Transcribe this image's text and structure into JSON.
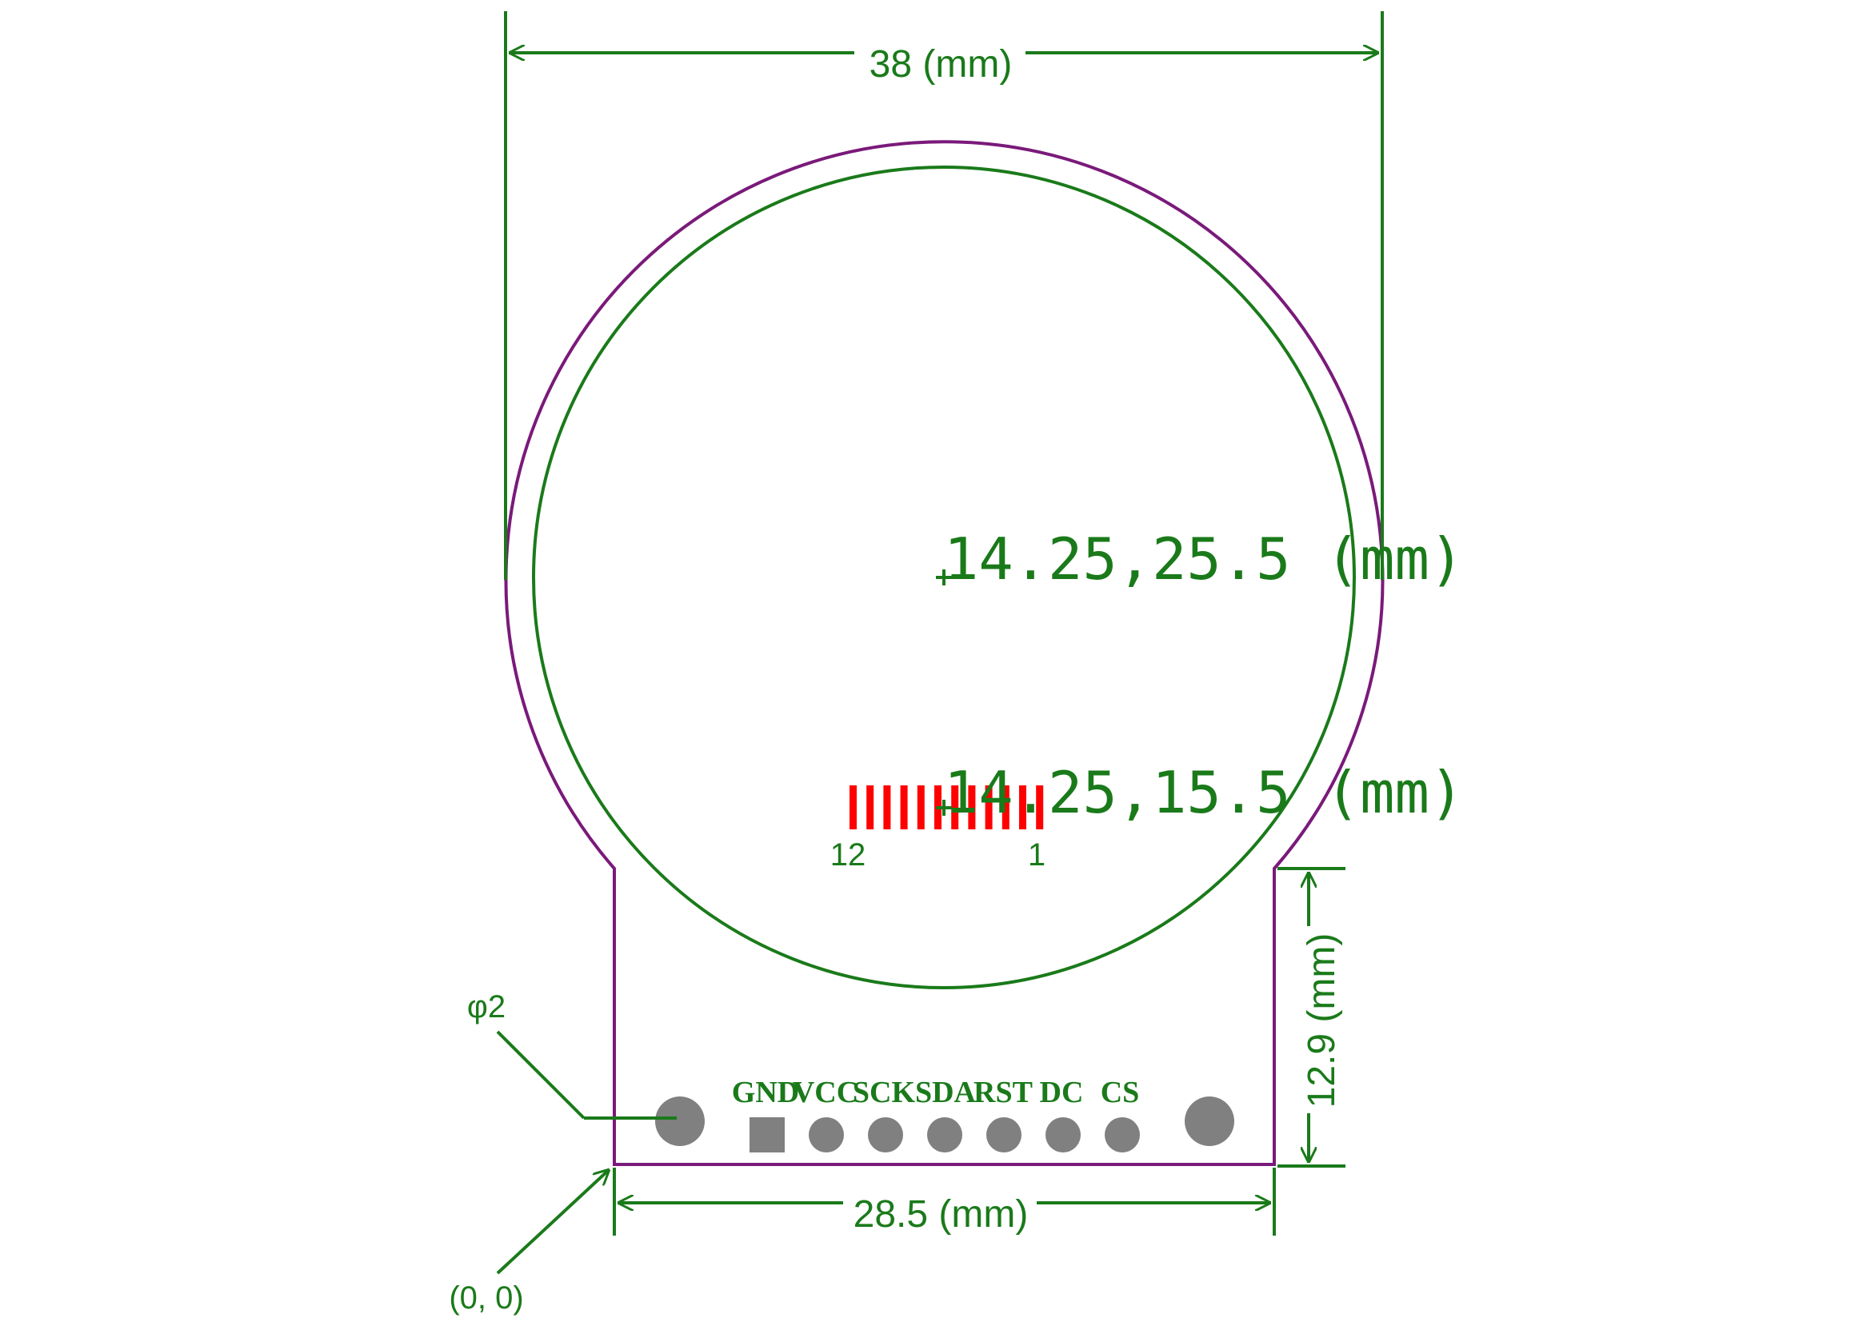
{
  "colors": {
    "dimension": "#1a7a1a",
    "outline": "#7a1a7a",
    "connector": "#ff0000",
    "pad": "#808080"
  },
  "dimensions": {
    "width_top": "38 (mm)",
    "width_bottom": "28.5 (mm)",
    "height_tail": "12.9 (mm)"
  },
  "coordinates": {
    "center": "14.25,25.5 (mm)",
    "connector": "14.25,15.5 (mm)",
    "origin": "(0, 0)"
  },
  "hole": {
    "label": "φ2"
  },
  "connector": {
    "left_pin": "12",
    "right_pin": "1",
    "pin_count": 12
  },
  "pins": [
    "GND",
    "VCC",
    "SCK",
    "SDA",
    "RST",
    "DC",
    "CS"
  ]
}
